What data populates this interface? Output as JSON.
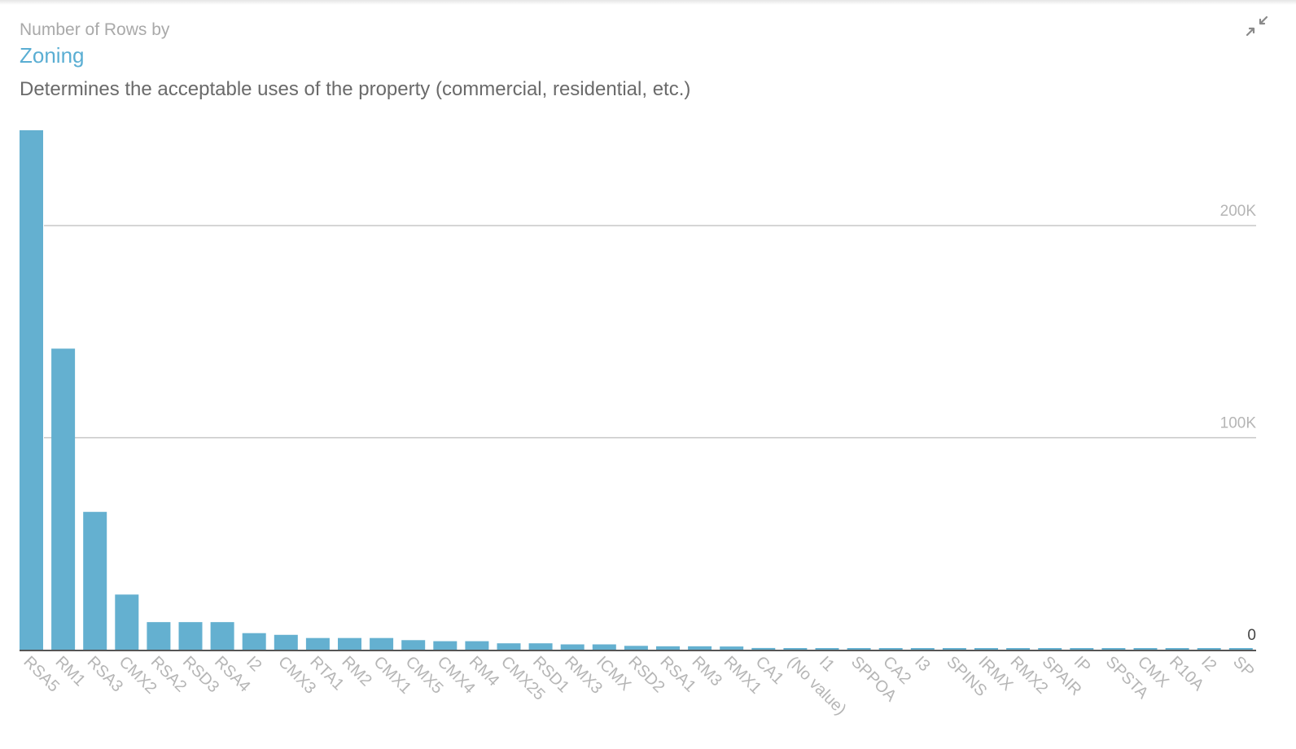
{
  "header": {
    "eyebrow": "Number of Rows by",
    "title": "Zoning",
    "description": "Determines the acceptable uses of the property (commercial, residential, etc.)"
  },
  "toolbar": {
    "collapse_icon": "collapse-arrows-icon"
  },
  "colors": {
    "bar": "#64b0d0",
    "title": "#5aaed3",
    "grid": "#c8c8c8",
    "axis": "#555555",
    "tick_text": "#b5b5b5"
  },
  "chart_data": {
    "type": "bar",
    "categories": [
      "RSA5",
      "RM1",
      "RSA3",
      "CMX2",
      "RSA2",
      "RSD3",
      "RSA4",
      "I2",
      "CMX3",
      "RTA1",
      "RM2",
      "CMX1",
      "CMX5",
      "CMX4",
      "RM4",
      "CMX25",
      "RSD1",
      "RMX3",
      "ICMX",
      "RSD2",
      "RSA1",
      "RM3",
      "RMX1",
      "CA1",
      "(No value)",
      "I1",
      "SPPOA",
      "CA2",
      "I3",
      "SPINS",
      "IRMX",
      "RMX2",
      "SPAIR",
      "IP",
      "SPSTA",
      "CMX",
      "R10A",
      "I2",
      "SP"
    ],
    "values": [
      245000,
      142000,
      65000,
      26000,
      13000,
      13000,
      13000,
      7800,
      7000,
      5500,
      5500,
      5500,
      4500,
      4000,
      4000,
      3000,
      3000,
      2500,
      2500,
      1800,
      1600,
      1600,
      1500,
      800,
      700,
      700,
      700,
      700,
      700,
      700,
      700,
      700,
      700,
      700,
      700,
      700,
      700,
      700,
      700
    ],
    "yticks": [
      0,
      100000,
      200000
    ],
    "ytick_labels": [
      "0",
      "100K",
      "200K"
    ],
    "ylim": [
      0,
      245000
    ],
    "grid": true,
    "xlabel": "",
    "ylabel": ""
  }
}
